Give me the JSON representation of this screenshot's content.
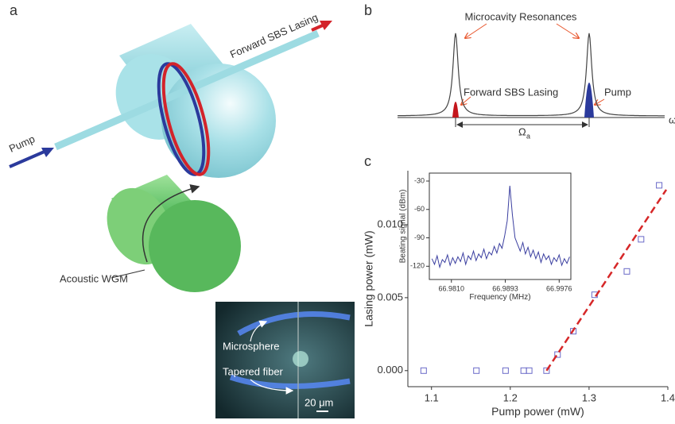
{
  "panel_a": {
    "label": "a",
    "pump": "Pump",
    "forward_sbs": "Forward SBS Lasing",
    "acoustic": "Acoustic WGM",
    "microsphere": "Microsphere",
    "tapered": "Tapered fiber",
    "scale": "20 μm"
  },
  "panel_b": {
    "label": "b",
    "resonances": "Microcavity Resonances",
    "forward_sbs": "Forward SBS Lasing",
    "pump": "Pump",
    "omega": "Ω",
    "omega_sub": "a",
    "axis": "ω"
  },
  "panel_c": {
    "label": "c"
  },
  "chart_data": [
    {
      "type": "scatter",
      "x_label": "Pump power (mW)",
      "y_label": "Lasing power (mW)",
      "xlim": [
        1.07,
        1.4
      ],
      "ylim": [
        -0.0011,
        0.0137
      ],
      "xticks": [
        1.1,
        1.2,
        1.3,
        1.4
      ],
      "yticks": [
        {
          "value": 0,
          "label": "0.000"
        },
        {
          "value": 0.005,
          "label": "0.005"
        },
        {
          "value": 0.01,
          "label": "0.010"
        }
      ],
      "series": [
        {
          "type": "scatter",
          "marker": "square",
          "color": "#6a6ac8",
          "x": [
            1.09,
            1.157,
            1.194,
            1.217,
            1.224,
            1.246,
            1.26,
            1.28,
            1.307,
            1.348,
            1.366,
            1.389
          ],
          "values": [
            0,
            0,
            0,
            0,
            0,
            0,
            0.0011,
            0.0027,
            0.0052,
            0.0068,
            0.009,
            0.0127
          ]
        },
        {
          "type": "line",
          "dashed": true,
          "color": "#d62728",
          "x": [
            1.246,
            1.398
          ],
          "values": [
            0,
            0.0124
          ]
        }
      ]
    },
    {
      "type": "line",
      "x_label": "Frequency (MHz)",
      "y_label": "Beating signal (dBm)",
      "xlim": [
        66.9776,
        66.9994
      ],
      "ylim": [
        -134,
        -21.6
      ],
      "xticks": [
        {
          "value": 66.981,
          "label": "66.9810"
        },
        66.9893,
        66.9976
      ],
      "yticks": [
        -30,
        -60,
        -90,
        -120
      ],
      "x": [
        66.978,
        66.9784,
        66.9788,
        66.9792,
        66.9796,
        66.98,
        66.9804,
        66.9808,
        66.9812,
        66.9816,
        66.982,
        66.9824,
        66.9828,
        66.9832,
        66.9836,
        66.984,
        66.9844,
        66.9848,
        66.9852,
        66.9856,
        66.986,
        66.9864,
        66.9868,
        66.9872,
        66.9876,
        66.988,
        66.9884,
        66.9888,
        66.9892,
        66.9896,
        66.99,
        66.9904,
        66.9908,
        66.9912,
        66.9916,
        66.992,
        66.9924,
        66.9928,
        66.9932,
        66.9936,
        66.994,
        66.9944,
        66.9948,
        66.9952,
        66.9956,
        66.996,
        66.9964,
        66.9968,
        66.9972,
        66.9976,
        66.998,
        66.9984,
        66.9988,
        66.9992
      ],
      "series": [
        {
          "color": "#3b3fa0",
          "values": [
            -112,
            -118,
            -109,
            -121,
            -113,
            -116,
            -108,
            -119,
            -111,
            -117,
            -110,
            -115,
            -106,
            -118,
            -109,
            -113,
            -104,
            -114,
            -107,
            -111,
            -102,
            -112,
            -105,
            -108,
            -99,
            -106,
            -96,
            -101,
            -88,
            -72,
            -35,
            -66,
            -90,
            -97,
            -104,
            -95,
            -107,
            -100,
            -110,
            -103,
            -112,
            -105,
            -116,
            -107,
            -113,
            -109,
            -118,
            -111,
            -115,
            -108,
            -119,
            -112,
            -117,
            -110
          ]
        }
      ]
    }
  ]
}
